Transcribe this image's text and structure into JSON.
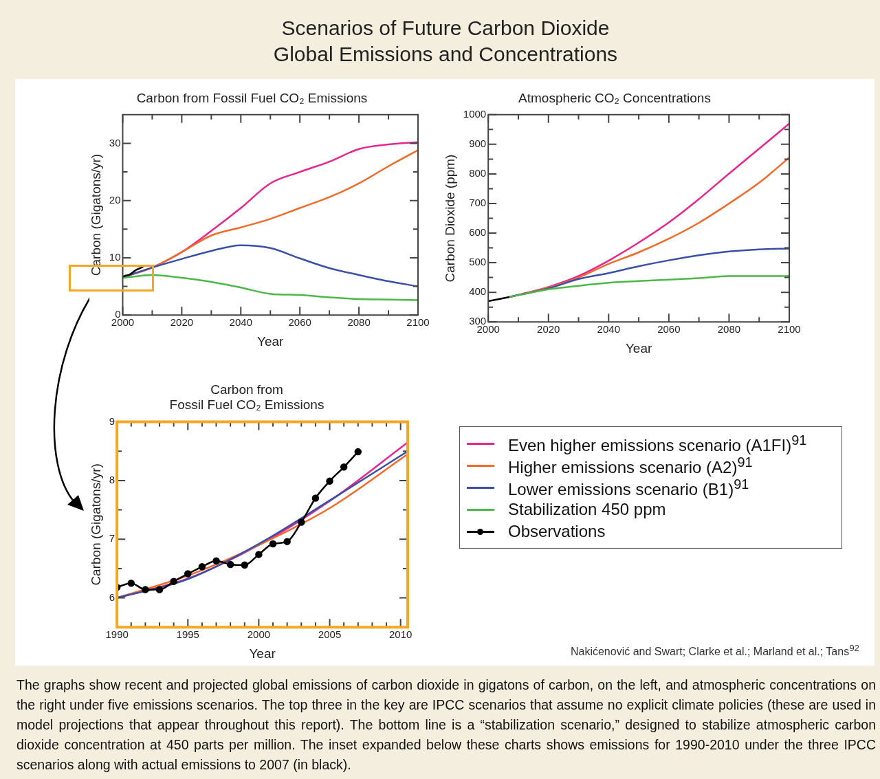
{
  "chart_data": [
    {
      "type": "line",
      "title": "Carbon from Fossil Fuel CO₂ Emissions",
      "xlabel": "Year",
      "ylabel": "Carbon (Gigatons/yr)",
      "legend": "bottom right",
      "annotations": [
        "Scenarios of Future Carbon Dioxide\nGlobal Emissions and Concentrations"
      ],
      "xlim": [
        2000,
        2100
      ],
      "xticks": [
        2000,
        {
          "value": 2010,
          "label": null
        },
        2020,
        {
          "value": 2030,
          "label": null
        },
        2040,
        {
          "value": 2050,
          "label": null
        },
        2060,
        {
          "value": 2070,
          "label": null
        },
        2080,
        {
          "value": 2090,
          "label": null
        },
        2100
      ],
      "ylim": [
        0,
        35
      ],
      "yticks": [
        0,
        {
          "value": 5,
          "label": null
        },
        10,
        {
          "value": 15,
          "label": null
        },
        20,
        {
          "value": 25,
          "label": null
        },
        30
      ],
      "series": [
        {
          "name": "Even higher emissions scenario (A1FI)$^{91}$",
          "color": "#e8258f",
          "x": [
            2000,
            2010,
            2020,
            2030,
            2040,
            2050,
            2060,
            2070,
            2080,
            2090,
            2100
          ],
          "values": [
            6.6,
            8.3,
            11,
            14.7,
            18.7,
            23,
            25,
            26.8,
            29,
            29.8,
            30.2
          ]
        },
        {
          "name": "Higher emissions scenario (A2)$^{91}$",
          "color": "#f26a2a",
          "x": [
            2000,
            2010,
            2020,
            2030,
            2040,
            2050,
            2060,
            2070,
            2080,
            2090,
            2100
          ],
          "values": [
            6.6,
            8.3,
            11,
            13.9,
            15.3,
            16.8,
            18.7,
            20.6,
            23,
            26,
            28.8
          ]
        },
        {
          "name": "Lower emissions scenario (B1)$^{91}$",
          "color": "#3a4fa8",
          "x": [
            2000,
            2010,
            2020,
            2030,
            2040,
            2050,
            2060,
            2070,
            2080,
            2090,
            2100
          ],
          "values": [
            6.6,
            8.3,
            9.8,
            11.2,
            12.2,
            11.7,
            9.9,
            8.2,
            7,
            5.9,
            5
          ]
        },
        {
          "name": "Stabilization 450 ppm",
          "color": "#4cb848",
          "x": [
            2000,
            2010,
            2020,
            2030,
            2040,
            2050,
            2060,
            2070,
            2080,
            2090,
            2100
          ],
          "values": [
            6.5,
            7,
            6.5,
            5.8,
            4.8,
            3.7,
            3.5,
            3.1,
            2.8,
            2.7,
            2.6
          ]
        },
        {
          "name": "Observations",
          "color": "#000000",
          "x": [
            2000,
            2001,
            2002,
            2003,
            2004,
            2005,
            2006,
            2007
          ],
          "values": [
            6.7,
            6.9,
            7.0,
            7.3,
            7.7,
            8.0,
            8.2,
            8.5
          ]
        }
      ]
    },
    {
      "type": "line",
      "title": "Atmospheric CO₂ Concentrations",
      "xlabel": "Year",
      "ylabel": "Carbon Dioxide (ppm)",
      "xlim": [
        2000,
        2100
      ],
      "xticks": [
        2000,
        {
          "value": 2010,
          "label": null
        },
        2020,
        {
          "value": 2030,
          "label": null
        },
        2040,
        {
          "value": 2050,
          "label": null
        },
        2060,
        {
          "value": 2070,
          "label": null
        },
        2080,
        {
          "value": 2090,
          "label": null
        },
        2100
      ],
      "ylim": [
        300,
        1000
      ],
      "yticks": [
        300,
        {
          "value": 350,
          "label": null
        },
        400,
        {
          "value": 450,
          "label": null
        },
        500,
        {
          "value": 550,
          "label": null
        },
        600,
        {
          "value": 650,
          "label": null
        },
        700,
        {
          "value": 750,
          "label": null
        },
        800,
        {
          "value": 850,
          "label": null
        },
        900,
        {
          "value": 950,
          "label": null
        },
        1000
      ],
      "series": [
        {
          "color": "#e8258f",
          "x": [
            2007,
            2020,
            2030,
            2040,
            2050,
            2060,
            2070,
            2080,
            2090,
            2100
          ],
          "values": [
            384,
            418,
            455,
            507,
            568,
            636,
            715,
            801,
            885,
            970
          ]
        },
        {
          "color": "#f26a2a",
          "x": [
            2007,
            2020,
            2030,
            2040,
            2050,
            2060,
            2070,
            2080,
            2090,
            2100
          ],
          "values": [
            384,
            416,
            450,
            496,
            535,
            581,
            635,
            700,
            770,
            855
          ]
        },
        {
          "color": "#3a4fa8",
          "x": [
            2007,
            2020,
            2030,
            2040,
            2050,
            2060,
            2070,
            2080,
            2090,
            2100
          ],
          "values": [
            384,
            413,
            445,
            465,
            488,
            508,
            525,
            538,
            545,
            548
          ]
        },
        {
          "color": "#4cb848",
          "x": [
            2007,
            2020,
            2030,
            2040,
            2050,
            2060,
            2070,
            2080,
            2090,
            2100
          ],
          "values": [
            384,
            410,
            422,
            432,
            438,
            443,
            448,
            455,
            455,
            455
          ]
        },
        {
          "color": "#000000",
          "x": [
            2000,
            2003,
            2007
          ],
          "values": [
            370,
            376,
            384
          ]
        }
      ]
    },
    {
      "type": "line",
      "title": "Carbon from\nFossil Fuel CO₂ Emissions",
      "xlabel": "Year",
      "ylabel": "Carbon (Gigatons/yr)",
      "annotations": [
        "Nakićenović and Swart; Clarke et al.; Marland et al.; Tans$^{92}$",
        "The graphs show recent and projected global emissions of carbon dioxide in gigatons of carbon, on the left, and atmospheric concentrations on the right under five emissions scenarios. The top three in the key are IPCC scenarios that assume no explicit climate policies (these are used in model projections that appear throughout this report). The bottom line is a “stabilization scenario,” designed to stabilize atmospheric carbon dioxide concentration at 450 parts per million. The inset expanded below these charts shows emissions for 1990-2010 under the three IPCC scenarios along with actual emissions to 2007 (in black)."
      ],
      "xlim": [
        1990,
        2010.5
      ],
      "xticks": [
        1990,
        {
          "value": 1991,
          "label": null
        },
        {
          "value": 1992,
          "label": null
        },
        {
          "value": 1993,
          "label": null
        },
        {
          "value": 1994,
          "label": null
        },
        1995,
        {
          "value": 1996,
          "label": null
        },
        {
          "value": 1997,
          "label": null
        },
        {
          "value": 1998,
          "label": null
        },
        {
          "value": 1999,
          "label": null
        },
        2000,
        {
          "value": 2001,
          "label": null
        },
        {
          "value": 2002,
          "label": null
        },
        {
          "value": 2003,
          "label": null
        },
        {
          "value": 2004,
          "label": null
        },
        2005,
        {
          "value": 2006,
          "label": null
        },
        {
          "value": 2007,
          "label": null
        },
        {
          "value": 2008,
          "label": null
        },
        {
          "value": 2009,
          "label": null
        },
        2010
      ],
      "ylim": [
        5.5,
        9
      ],
      "yticks": [
        6,
        {
          "value": 6.5,
          "label": null
        },
        7,
        {
          "value": 7.5,
          "label": null
        },
        8,
        {
          "value": 8.5,
          "label": null
        },
        9
      ],
      "series": [
        {
          "color": "#e8258f",
          "x": [
            1990,
            1995,
            2000,
            2005,
            2010.5
          ],
          "values": [
            6.0,
            6.33,
            6.9,
            7.65,
            8.65
          ]
        },
        {
          "color": "#f26a2a",
          "x": [
            1990,
            1995,
            2000,
            2005,
            2010.5
          ],
          "values": [
            6.0,
            6.38,
            6.9,
            7.53,
            8.45
          ]
        },
        {
          "color": "#3a4fa8",
          "x": [
            1990,
            1995,
            2000,
            2005,
            2010.5
          ],
          "values": [
            6.0,
            6.32,
            6.92,
            7.66,
            8.5
          ]
        },
        {
          "color": "#000000",
          "marker": "circle",
          "x": [
            1990,
            1991,
            1992,
            1993,
            1994,
            1995,
            1996,
            1997,
            1998,
            1999,
            2000,
            2001,
            2002,
            2003,
            2004,
            2005,
            2006,
            2007
          ],
          "values": [
            6.18,
            6.25,
            6.14,
            6.14,
            6.28,
            6.41,
            6.53,
            6.63,
            6.57,
            6.56,
            6.74,
            6.92,
            6.96,
            7.29,
            7.7,
            7.99,
            8.23,
            8.49
          ]
        }
      ]
    }
  ]
}
